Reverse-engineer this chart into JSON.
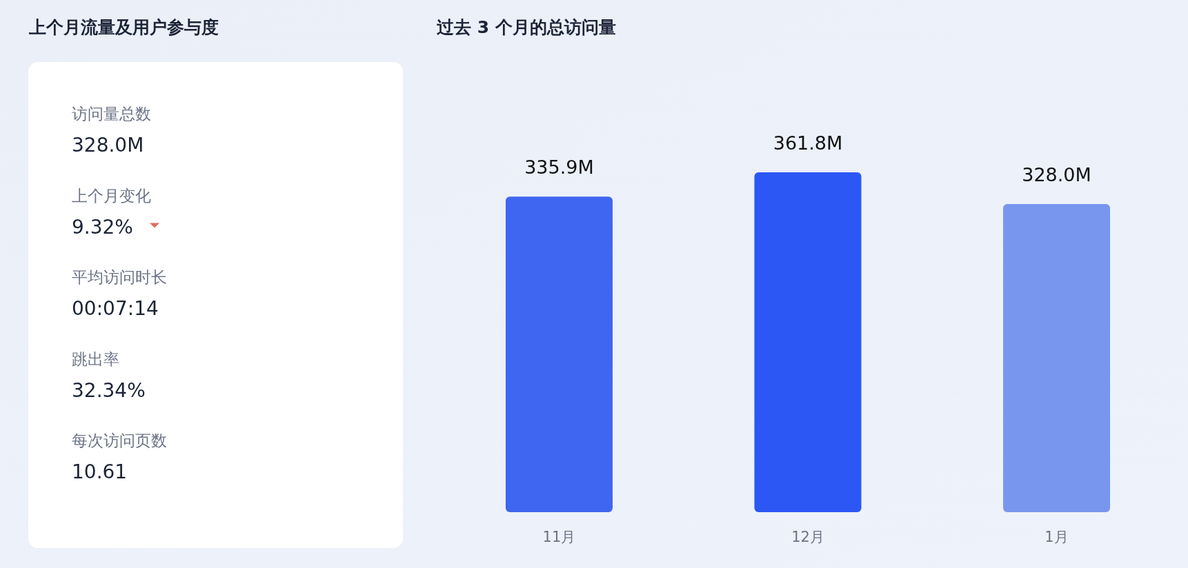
{
  "chart_data": [
    {
      "type": "other",
      "title": "上个月流量及用户参与度",
      "annotations": [
        "访问量总数",
        "328.0M",
        "上个月变化",
        "9.32%",
        "平均访问时长",
        "00:07:14",
        "跳出率",
        "32.34%",
        "每次访问页数",
        "10.61"
      ]
    },
    {
      "type": "bar",
      "title": "过去 3 个月的总访问量",
      "categories": [
        "11月",
        "12月",
        "1月"
      ],
      "values": [
        335.9,
        361.8,
        328.0
      ],
      "colors": [
        "#3f66f0",
        "#2c57f5",
        "#7896ee"
      ],
      "value_labels": [
        "335.9M",
        "361.8M",
        "328.0M"
      ]
    }
  ]
}
